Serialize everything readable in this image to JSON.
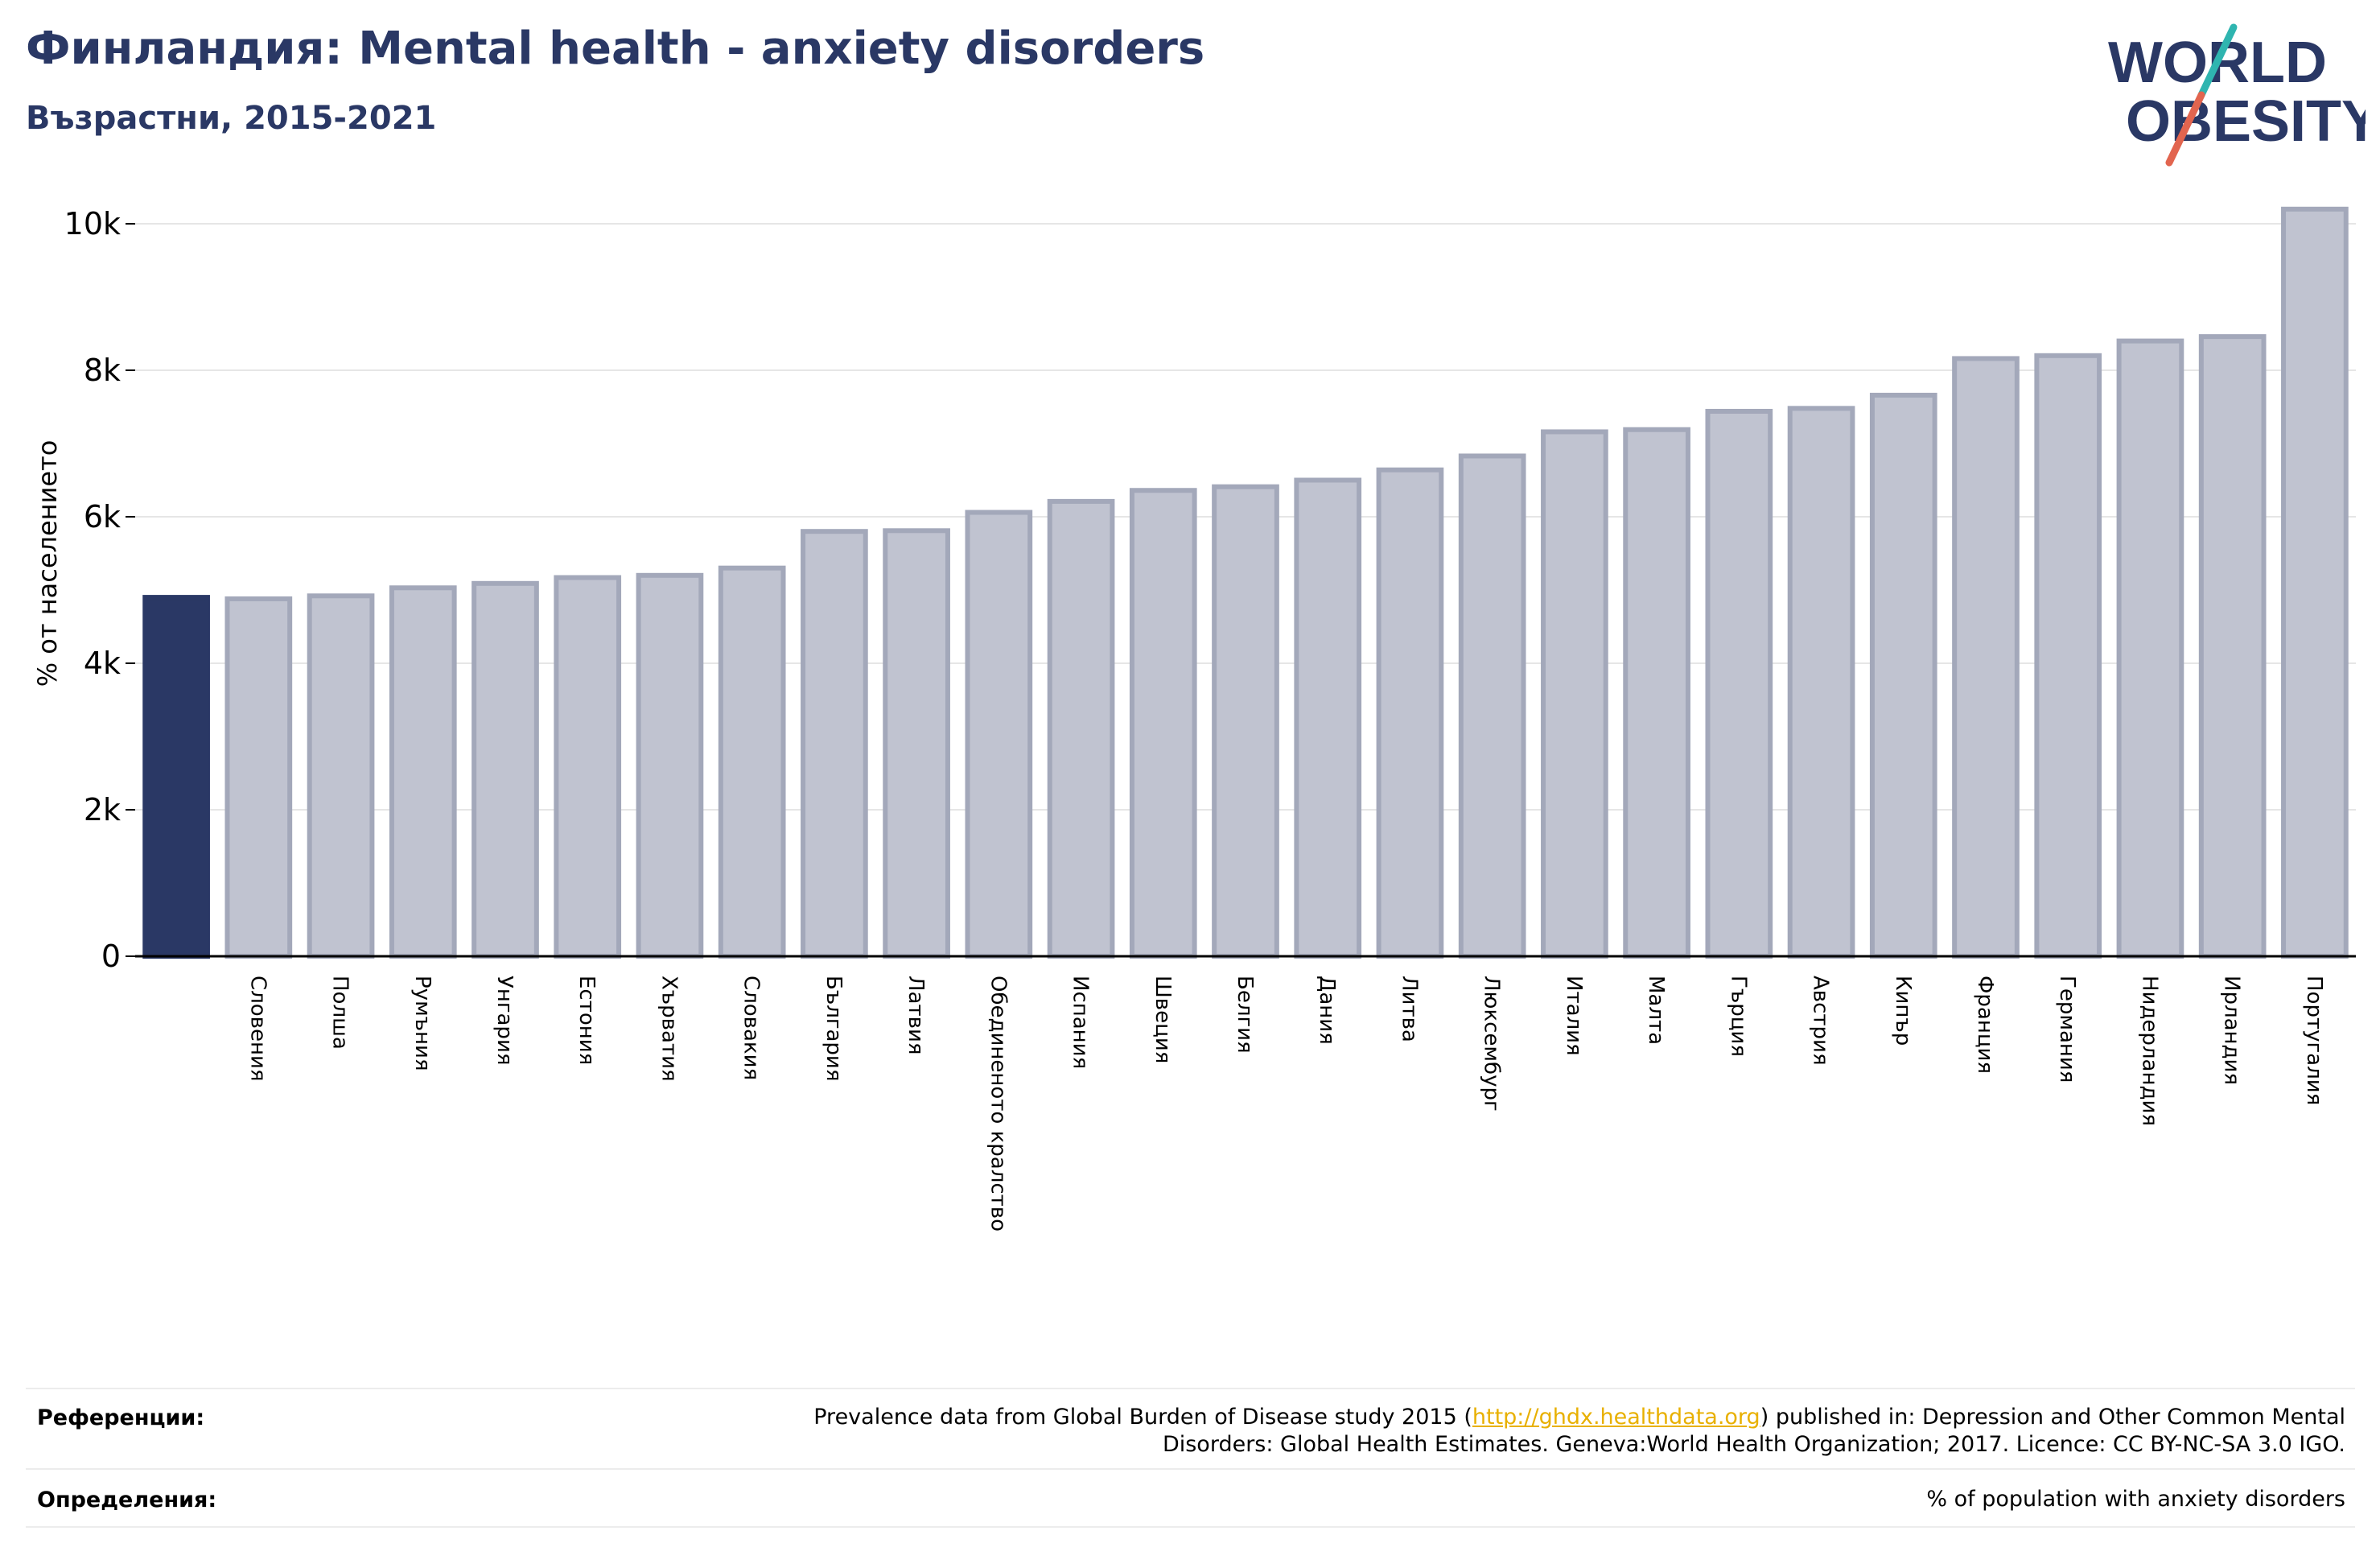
{
  "header": {
    "title": "Финландия: Mental health - anxiety disorders",
    "subtitle": "Възрастни, 2015-2021"
  },
  "logo": {
    "line1": "WORLD",
    "line2": "OBESITY"
  },
  "chart_data": {
    "type": "bar",
    "title": "Финландия: Mental health - anxiety disorders",
    "subtitle": "Възрастни, 2015-2021",
    "ylabel": "% от населението",
    "xlabel": "",
    "ylim": [
      0,
      10500
    ],
    "yticks": [
      0,
      2000,
      4000,
      6000,
      8000,
      10000
    ],
    "ytick_labels": [
      "0",
      "2k",
      "4k",
      "6k",
      "8k",
      "10k"
    ],
    "grid": true,
    "highlight_index": 0,
    "colors": {
      "highlight": "#2a3865",
      "bar_fill": "#c0c3d0",
      "bar_edge": "#a3a8ba"
    },
    "categories": [
      "",
      "Словения",
      "Полша",
      "Румъния",
      "Унгария",
      "Естония",
      "Хърватия",
      "Словакия",
      "България",
      "Латвия",
      "Обединеното кралство",
      "Испания",
      "Швеция",
      "Белгия",
      "Дания",
      "Литва",
      "Люксембург",
      "Италия",
      "Малта",
      "Гърция",
      "Австрия",
      "Кипър",
      "Франция",
      "Германия",
      "Нидерландия",
      "Ирландия",
      "Португалия"
    ],
    "values": [
      4900,
      4880,
      4920,
      5030,
      5090,
      5170,
      5200,
      5300,
      5800,
      5810,
      6060,
      6210,
      6360,
      6410,
      6500,
      6640,
      6830,
      7160,
      7190,
      7440,
      7480,
      7660,
      8160,
      8200,
      8400,
      8460,
      10200
    ]
  },
  "footer": {
    "references_label": "Референции:",
    "references_line1_pre": "Prevalence data from Global Burden of Disease study 2015 (",
    "references_link": "http://ghdx.healthdata.org",
    "references_line1_post": ") published in: Depression and Other Common Mental",
    "references_line2": "Disorders: Global Health Estimates. Geneva:World Health Organization; 2017. Licence: CC BY-NC-SA 3.0 IGO.",
    "definitions_label": "Определения:",
    "definitions_text": "% of population with anxiety disorders"
  }
}
